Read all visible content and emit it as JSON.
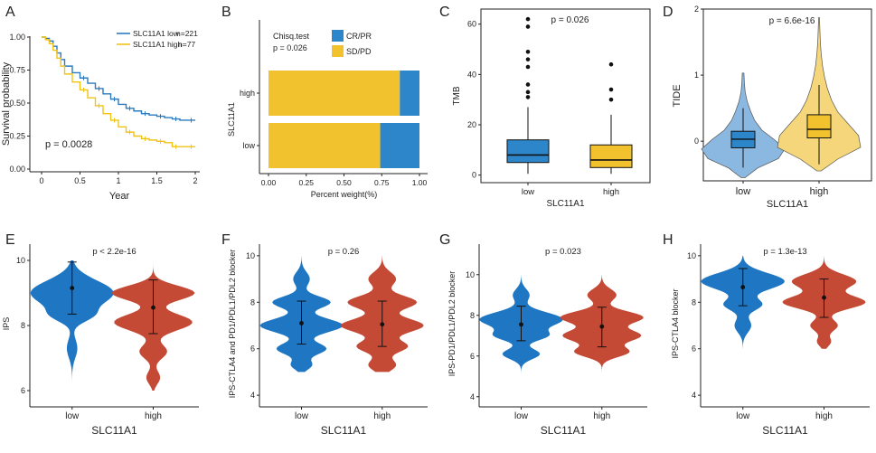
{
  "panel_letters": [
    "A",
    "B",
    "C",
    "D",
    "E",
    "F",
    "G",
    "H"
  ],
  "colors": {
    "blue": "#2d86c9",
    "yellow": "#f2c12e",
    "red": "#c9472f",
    "violin_blue": "#1f77c4",
    "violin_red": "#c44a36",
    "km_blue": "#2b7bc0",
    "km_yellow": "#f2c314",
    "violin_light_blue": "#8ab8e0",
    "violin_light_yellow": "#f5d67a"
  },
  "chart_data": [
    {
      "panel": "A",
      "type": "line",
      "subtype": "kaplan-meier",
      "xlabel": "Year",
      "ylabel": "Survival probability",
      "xlim": [
        0,
        2
      ],
      "ylim": [
        0,
        1
      ],
      "xticks": [
        "0",
        "0.5",
        "1",
        "1.5",
        "2"
      ],
      "yticks": [
        "0.00",
        "0.25",
        "0.50",
        "0.75",
        "1.00"
      ],
      "annotation": "p = 0.0028",
      "legend": [
        "SLC11A1 low",
        "n=221",
        "SLC11A1 high",
        "n=77"
      ],
      "series": [
        {
          "name": "SLC11A1 low",
          "x": [
            0,
            0.05,
            0.1,
            0.15,
            0.2,
            0.25,
            0.3,
            0.4,
            0.5,
            0.6,
            0.7,
            0.8,
            0.9,
            1.0,
            1.1,
            1.2,
            1.3,
            1.4,
            1.5,
            1.6,
            1.7,
            1.8,
            1.9,
            2.0
          ],
          "y": [
            1.0,
            0.99,
            0.97,
            0.93,
            0.88,
            0.83,
            0.78,
            0.73,
            0.69,
            0.65,
            0.61,
            0.57,
            0.53,
            0.49,
            0.46,
            0.44,
            0.42,
            0.41,
            0.4,
            0.39,
            0.38,
            0.37,
            0.37,
            0.37
          ]
        },
        {
          "name": "SLC11A1 high",
          "x": [
            0,
            0.05,
            0.1,
            0.15,
            0.2,
            0.25,
            0.3,
            0.4,
            0.5,
            0.6,
            0.7,
            0.8,
            0.9,
            1.0,
            1.1,
            1.2,
            1.3,
            1.4,
            1.5,
            1.6,
            1.7,
            1.8,
            1.9,
            2.0
          ],
          "y": [
            1.0,
            0.98,
            0.95,
            0.9,
            0.84,
            0.78,
            0.72,
            0.66,
            0.6,
            0.54,
            0.48,
            0.42,
            0.37,
            0.32,
            0.28,
            0.25,
            0.23,
            0.22,
            0.21,
            0.2,
            0.17,
            0.17,
            0.17,
            0.17
          ]
        }
      ]
    },
    {
      "panel": "B",
      "type": "bar",
      "subtype": "stacked-horizontal",
      "xlabel": "Percent weight(%)",
      "ylabel": "SLC11A1",
      "categories": [
        "high",
        "low"
      ],
      "xticks": [
        "0.00",
        "0.25",
        "0.50",
        "0.75",
        "1.00"
      ],
      "annotation": [
        "Chisq.test",
        "p = 0.026"
      ],
      "series": [
        {
          "name": "SD/PD",
          "values": [
            0.87,
            0.74
          ]
        },
        {
          "name": "CR/PR",
          "values": [
            0.13,
            0.26
          ]
        }
      ]
    },
    {
      "panel": "C",
      "type": "box",
      "xlabel": "SLC11A1",
      "ylabel": "TMB",
      "annotation": "p = 0.026",
      "categories": [
        "low",
        "high"
      ],
      "ylim": [
        -3,
        66
      ],
      "yticks": [
        "0",
        "20",
        "40",
        "60"
      ],
      "boxes": [
        {
          "q1": 5,
          "median": 8,
          "q3": 14,
          "lo": 0.5,
          "hi": 27,
          "outliers": [
            31,
            33,
            36,
            43,
            46,
            49,
            59,
            62
          ]
        },
        {
          "q1": 3,
          "median": 6,
          "q3": 12,
          "lo": 0.5,
          "hi": 24,
          "outliers": [
            30,
            34,
            44
          ]
        }
      ]
    },
    {
      "panel": "D",
      "type": "violin",
      "xlabel": "SLC11A1",
      "ylabel": "TIDE",
      "annotation": "p = 6.6e-16",
      "categories": [
        "low",
        "high"
      ],
      "ylim": [
        -0.6,
        2.0
      ],
      "yticks": [
        "0",
        "1",
        "2"
      ],
      "violins": [
        {
          "min": -0.55,
          "max": 1.03,
          "q1": -0.1,
          "median": 0.03,
          "q3": 0.15,
          "wlo": -0.4,
          "whi": 0.5,
          "profile": [
            0.05,
            0.35,
            0.85,
            1.0,
            0.75,
            0.45,
            0.28,
            0.18,
            0.1,
            0.05,
            0.03,
            0.02
          ]
        },
        {
          "min": -0.45,
          "max": 1.87,
          "q1": 0.05,
          "median": 0.18,
          "q3": 0.4,
          "wlo": -0.35,
          "whi": 0.85,
          "profile": [
            0.05,
            0.45,
            1.0,
            0.95,
            0.7,
            0.45,
            0.3,
            0.2,
            0.13,
            0.08,
            0.05,
            0.03,
            0.02,
            0.01
          ]
        }
      ]
    },
    {
      "panel": "E",
      "type": "violin",
      "xlabel": "SLC11A1",
      "ylabel": "IPS",
      "annotation": "p < 2.2e-16",
      "categories": [
        "low",
        "high"
      ],
      "ylim": [
        5.5,
        10.5
      ],
      "yticks": [
        "6",
        "8",
        "10"
      ],
      "points": [
        {
          "mean": 9.15,
          "lo": 8.35,
          "hi": 9.95
        },
        {
          "mean": 8.55,
          "lo": 7.75,
          "hi": 9.4
        }
      ],
      "violins": [
        {
          "min": 6.0,
          "max": 10.0,
          "peaks": [
            [
              9.0,
              0.95,
              0.38
            ],
            [
              8.3,
              0.35,
              0.2
            ],
            [
              7.3,
              0.12,
              0.3
            ]
          ]
        },
        {
          "min": 6.0,
          "max": 10.0,
          "peaks": [
            [
              9.0,
              0.9,
              0.22
            ],
            [
              8.1,
              0.85,
              0.25
            ],
            [
              7.2,
              0.3,
              0.22
            ],
            [
              6.4,
              0.15,
              0.2
            ]
          ]
        }
      ]
    },
    {
      "panel": "F",
      "type": "violin",
      "xlabel": "SLC11A1",
      "ylabel": "IPS-CTLA4 and PD1/PDL1/PDL2 blocker",
      "annotation": "p = 0.26",
      "categories": [
        "low",
        "high"
      ],
      "ylim": [
        3.5,
        10.5
      ],
      "yticks": [
        "4",
        "6",
        "8",
        "10"
      ],
      "points": [
        {
          "mean": 7.1,
          "lo": 6.2,
          "hi": 8.05
        },
        {
          "mean": 7.05,
          "lo": 6.1,
          "hi": 8.05
        }
      ],
      "violins": [
        {
          "min": 5.0,
          "max": 10.0,
          "peaks": [
            [
              7.0,
              1.0,
              0.3
            ],
            [
              8.0,
              0.7,
              0.25
            ],
            [
              6.0,
              0.6,
              0.25
            ],
            [
              9.0,
              0.2,
              0.3
            ],
            [
              5.3,
              0.25,
              0.2
            ]
          ]
        },
        {
          "min": 5.0,
          "max": 10.0,
          "peaks": [
            [
              7.0,
              0.9,
              0.3
            ],
            [
              8.0,
              0.75,
              0.28
            ],
            [
              6.1,
              0.55,
              0.25
            ],
            [
              9.0,
              0.3,
              0.3
            ],
            [
              5.3,
              0.3,
              0.25
            ]
          ]
        }
      ]
    },
    {
      "panel": "G",
      "type": "violin",
      "xlabel": "SLC11A1",
      "ylabel": "IPS-PD1/PDL1/PDL2 blocker",
      "annotation": "p = 0.023",
      "categories": [
        "low",
        "high"
      ],
      "ylim": [
        3.5,
        11.5
      ],
      "yticks": [
        "4",
        "6",
        "8",
        "10"
      ],
      "points": [
        {
          "mean": 7.55,
          "lo": 6.75,
          "hi": 8.45
        },
        {
          "mean": 7.45,
          "lo": 6.45,
          "hi": 8.4
        }
      ],
      "violins": [
        {
          "min": 5.0,
          "max": 10.0,
          "peaks": [
            [
              7.8,
              1.0,
              0.35
            ],
            [
              7.0,
              0.6,
              0.25
            ],
            [
              6.1,
              0.45,
              0.25
            ],
            [
              9.0,
              0.2,
              0.3
            ]
          ]
        },
        {
          "min": 5.0,
          "max": 10.0,
          "peaks": [
            [
              7.9,
              0.85,
              0.3
            ],
            [
              7.0,
              0.8,
              0.3
            ],
            [
              6.2,
              0.55,
              0.25
            ],
            [
              9.0,
              0.3,
              0.3
            ]
          ]
        }
      ]
    },
    {
      "panel": "H",
      "type": "violin",
      "xlabel": "SLC11A1",
      "ylabel": "IPS-CTLA4 blocker",
      "annotation": "p = 1.3e-13",
      "categories": [
        "low",
        "high"
      ],
      "ylim": [
        3.5,
        10.5
      ],
      "yticks": [
        "4",
        "6",
        "8",
        "10"
      ],
      "points": [
        {
          "mean": 8.65,
          "lo": 7.85,
          "hi": 9.45
        },
        {
          "mean": 8.2,
          "lo": 7.35,
          "hi": 9.0
        }
      ],
      "violins": [
        {
          "min": 6.0,
          "max": 10.0,
          "peaks": [
            [
              8.9,
              1.0,
              0.35
            ],
            [
              7.9,
              0.45,
              0.25
            ],
            [
              7.0,
              0.2,
              0.3
            ]
          ]
        },
        {
          "min": 6.0,
          "max": 10.0,
          "peaks": [
            [
              8.9,
              0.7,
              0.3
            ],
            [
              8.0,
              0.9,
              0.28
            ],
            [
              7.0,
              0.3,
              0.25
            ],
            [
              6.3,
              0.15,
              0.2
            ]
          ]
        }
      ]
    }
  ]
}
